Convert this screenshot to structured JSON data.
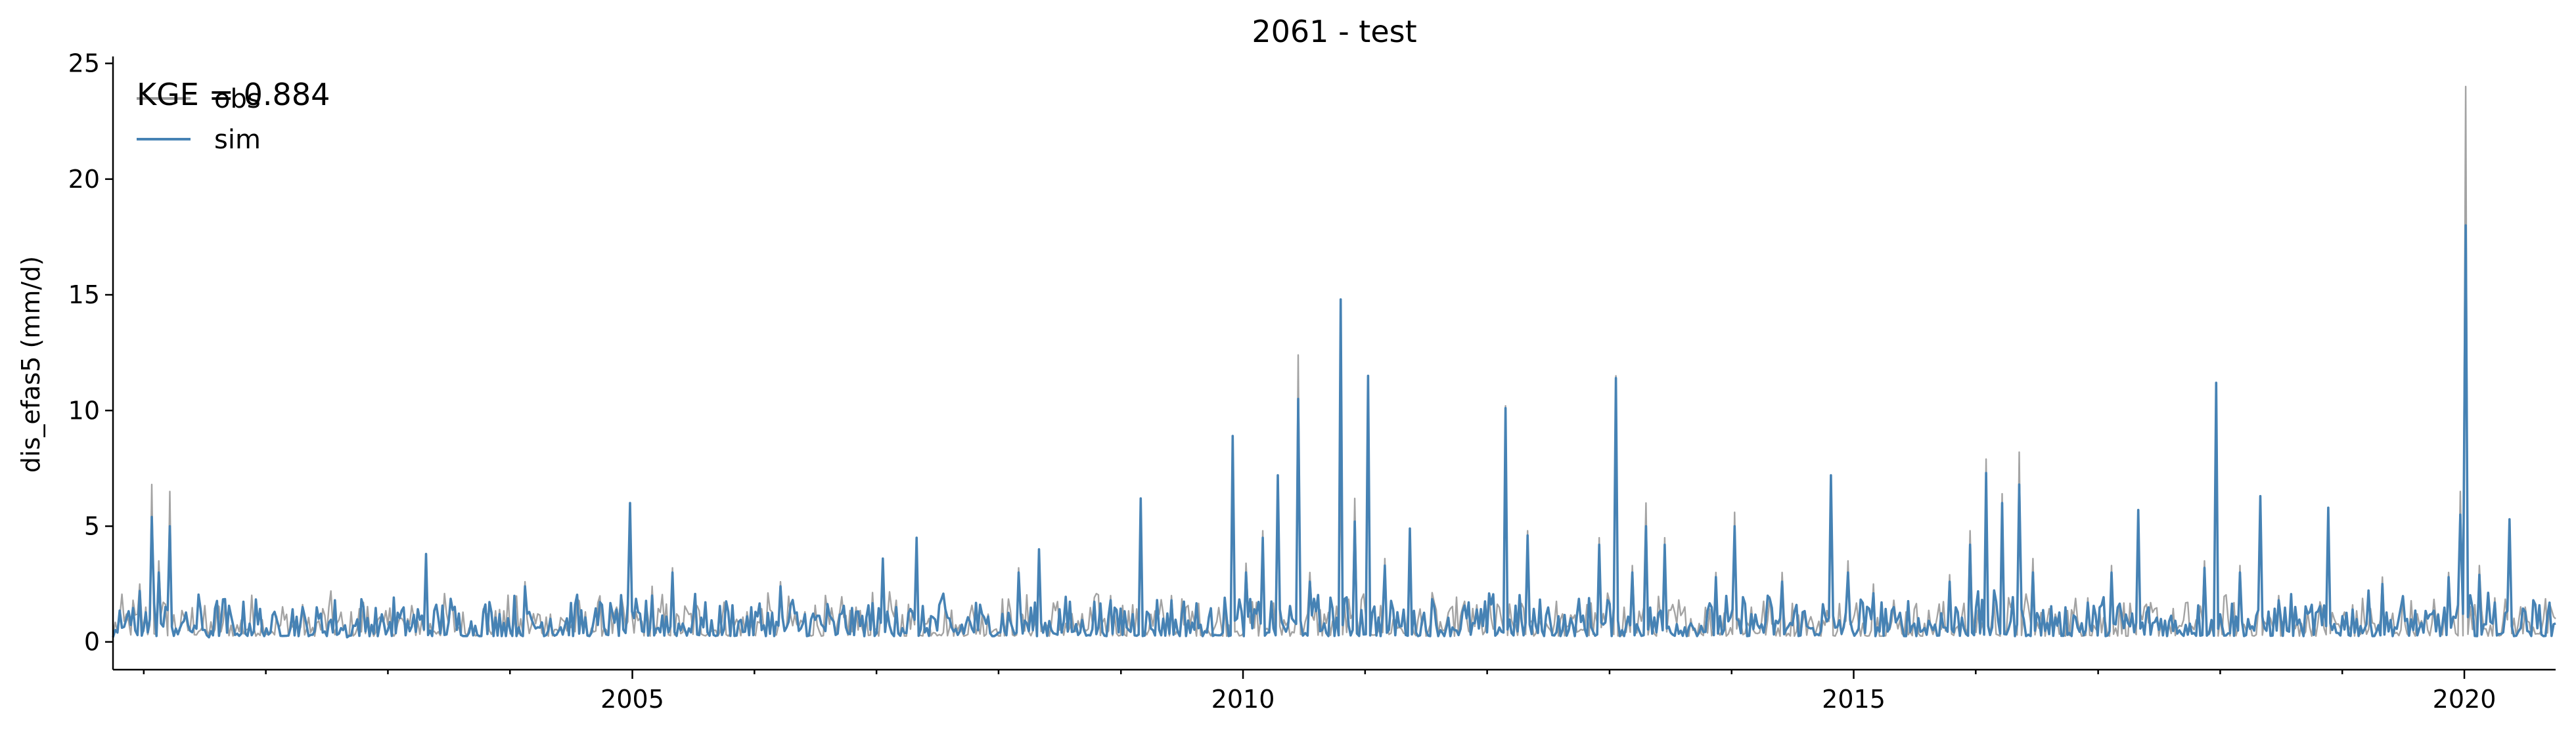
{
  "chart_data": {
    "type": "line",
    "title": "2061 - test",
    "xlabel": "",
    "ylabel": "dis_efas5 (mm/d)",
    "xlim": [
      "2000-10-01",
      "2020-09-30"
    ],
    "ylim": [
      -1.2,
      25.3
    ],
    "x_ticks": [
      "2005",
      "2010",
      "2015",
      "2020"
    ],
    "y_ticks": [
      0,
      5,
      10,
      15,
      20,
      25
    ],
    "grid": false,
    "legend_position": "top-left",
    "annotation": "KGE = 0.884",
    "series": [
      {
        "name": "obs",
        "color": "#999999",
        "x": [
          "2000-10-01",
          "2000-11-10",
          "2000-12-20",
          "2001-01-25",
          "2001-02-15",
          "2001-03-20",
          "2001-05-01",
          "2001-07-15",
          "2001-10-01",
          "2002-01-15",
          "2002-05-15",
          "2002-09-01",
          "2002-12-20",
          "2003-03-01",
          "2003-04-25",
          "2003-09-01",
          "2003-12-01",
          "2004-02-15",
          "2004-05-01",
          "2004-09-01",
          "2004-11-15",
          "2004-12-25",
          "2005-03-01",
          "2005-05-01",
          "2005-09-01",
          "2005-12-10",
          "2006-03-20",
          "2006-06-01",
          "2006-09-01",
          "2006-11-01",
          "2007-01-20",
          "2007-03-01",
          "2007-05-01",
          "2007-09-01",
          "2007-12-01",
          "2008-03-01",
          "2008-05-01",
          "2008-09-01",
          "2008-12-01",
          "2009-03-01",
          "2009-06-01",
          "2009-09-15",
          "2009-12-01",
          "2010-01-10",
          "2010-03-01",
          "2010-04-15",
          "2010-06-15",
          "2010-07-20",
          "2010-09-01",
          "2010-10-20",
          "2010-12-01",
          "2011-01-10",
          "2011-03-01",
          "2011-05-15",
          "2011-09-01",
          "2011-12-01",
          "2012-02-25",
          "2012-05-01",
          "2012-09-01",
          "2012-12-01",
          "2013-01-20",
          "2013-03-10",
          "2013-04-20",
          "2013-06-15",
          "2013-09-01",
          "2013-11-15",
          "2014-01-10",
          "2014-03-01",
          "2014-06-01",
          "2014-09-01",
          "2014-10-25",
          "2014-12-15",
          "2015-03-01",
          "2015-05-01",
          "2015-08-01",
          "2015-10-15",
          "2015-12-15",
          "2016-02-01",
          "2016-03-20",
          "2016-05-10",
          "2016-06-20",
          "2016-09-01",
          "2016-12-01",
          "2017-02-10",
          "2017-05-01",
          "2017-09-01",
          "2017-11-15",
          "2017-12-20",
          "2018-03-01",
          "2018-05-01",
          "2018-06-25",
          "2018-09-01",
          "2018-11-20",
          "2019-02-01",
          "2019-05-01",
          "2019-09-01",
          "2019-11-15",
          "2019-12-20",
          "2020-01-05",
          "2020-02-15",
          "2020-04-01",
          "2020-05-15",
          "2020-07-01",
          "2020-09-30"
        ],
        "values": [
          0.3,
          1.2,
          2.5,
          6.8,
          3.5,
          6.5,
          1.1,
          0.3,
          0.4,
          0.5,
          0.4,
          0.3,
          0.9,
          1.0,
          3.2,
          0.6,
          1.4,
          2.6,
          1.2,
          0.6,
          1.5,
          5.5,
          2.4,
          3.2,
          0.5,
          1.3,
          2.6,
          1.3,
          0.4,
          1.5,
          3.3,
          1.8,
          3.8,
          0.5,
          1.2,
          3.2,
          3.6,
          0.6,
          2.0,
          5.8,
          2.0,
          0.6,
          7.2,
          3.4,
          4.8,
          6.0,
          12.4,
          3.0,
          1.2,
          7.5,
          6.2,
          10.5,
          3.6,
          4.3,
          0.8,
          1.6,
          10.2,
          4.8,
          0.7,
          4.5,
          11.5,
          3.3,
          6.0,
          4.5,
          1.0,
          3.0,
          5.6,
          1.5,
          3.0,
          0.8,
          6.8,
          3.5,
          2.5,
          1.8,
          0.8,
          2.9,
          4.8,
          7.9,
          6.4,
          8.2,
          3.6,
          0.9,
          1.9,
          3.3,
          5.1,
          0.7,
          3.5,
          10.9,
          3.3,
          6.1,
          2.0,
          0.8,
          5.4,
          1.6,
          2.8,
          0.6,
          3.0,
          6.5,
          24.0,
          3.3,
          1.9,
          5.2,
          1.5,
          1.0
        ]
      },
      {
        "name": "sim",
        "color": "#4682b4",
        "x": [
          "2000-10-01",
          "2000-11-10",
          "2000-12-20",
          "2001-01-25",
          "2001-02-15",
          "2001-03-20",
          "2001-05-01",
          "2001-07-15",
          "2001-10-01",
          "2002-01-15",
          "2002-05-15",
          "2002-09-01",
          "2002-12-20",
          "2003-03-01",
          "2003-04-25",
          "2003-09-01",
          "2003-12-01",
          "2004-02-15",
          "2004-05-01",
          "2004-09-01",
          "2004-11-15",
          "2004-12-25",
          "2005-03-01",
          "2005-05-01",
          "2005-09-01",
          "2005-12-10",
          "2006-03-20",
          "2006-06-01",
          "2006-09-01",
          "2006-11-01",
          "2007-01-20",
          "2007-03-01",
          "2007-05-01",
          "2007-09-01",
          "2007-12-01",
          "2008-03-01",
          "2008-05-01",
          "2008-09-01",
          "2008-12-01",
          "2009-03-01",
          "2009-06-01",
          "2009-09-15",
          "2009-12-01",
          "2010-01-10",
          "2010-03-01",
          "2010-04-15",
          "2010-06-15",
          "2010-07-20",
          "2010-09-01",
          "2010-10-20",
          "2010-12-01",
          "2011-01-10",
          "2011-03-01",
          "2011-05-15",
          "2011-09-01",
          "2011-12-01",
          "2012-02-25",
          "2012-05-01",
          "2012-09-01",
          "2012-12-01",
          "2013-01-20",
          "2013-03-10",
          "2013-04-20",
          "2013-06-15",
          "2013-09-01",
          "2013-11-15",
          "2014-01-10",
          "2014-03-01",
          "2014-06-01",
          "2014-09-01",
          "2014-10-25",
          "2014-12-15",
          "2015-03-01",
          "2015-05-01",
          "2015-08-01",
          "2015-10-15",
          "2015-12-15",
          "2016-02-01",
          "2016-03-20",
          "2016-05-10",
          "2016-06-20",
          "2016-09-01",
          "2016-12-01",
          "2017-02-10",
          "2017-05-01",
          "2017-09-01",
          "2017-11-15",
          "2017-12-20",
          "2018-03-01",
          "2018-05-01",
          "2018-06-25",
          "2018-09-01",
          "2018-11-20",
          "2019-02-01",
          "2019-05-01",
          "2019-09-01",
          "2019-11-15",
          "2019-12-20",
          "2020-01-05",
          "2020-02-15",
          "2020-04-01",
          "2020-05-15",
          "2020-07-01",
          "2020-09-30"
        ],
        "values": [
          0.2,
          1.0,
          2.2,
          5.4,
          3.0,
          5.0,
          0.9,
          0.2,
          0.3,
          0.4,
          0.3,
          0.2,
          0.8,
          0.9,
          3.8,
          0.4,
          1.2,
          2.4,
          1.0,
          0.4,
          1.4,
          6.0,
          2.0,
          3.0,
          0.3,
          1.1,
          2.4,
          1.2,
          0.3,
          1.3,
          3.6,
          1.5,
          4.5,
          0.3,
          1.1,
          3.0,
          4.0,
          0.4,
          1.8,
          6.2,
          1.8,
          0.4,
          8.9,
          3.0,
          4.5,
          7.2,
          10.5,
          2.6,
          0.8,
          14.8,
          5.2,
          11.5,
          3.3,
          4.9,
          0.6,
          1.4,
          10.1,
          4.6,
          0.5,
          4.2,
          11.4,
          3.0,
          5.0,
          4.2,
          0.8,
          2.8,
          5.0,
          1.2,
          2.6,
          0.6,
          7.2,
          3.0,
          2.1,
          1.5,
          0.6,
          2.6,
          4.2,
          7.3,
          6.0,
          6.8,
          3.0,
          0.7,
          1.7,
          3.0,
          5.7,
          0.5,
          3.2,
          11.2,
          3.0,
          6.3,
          1.8,
          0.6,
          5.8,
          1.4,
          2.5,
          0.4,
          2.8,
          5.5,
          18.0,
          2.9,
          1.7,
          5.3,
          1.3,
          0.8
        ]
      }
    ]
  }
}
